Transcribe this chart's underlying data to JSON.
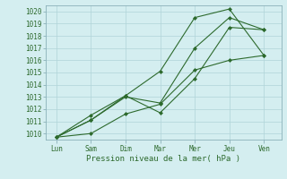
{
  "title": "",
  "xlabel": "Pression niveau de la mer( hPa )",
  "ylabel": "",
  "background_color": "#d4eef0",
  "grid_color": "#b0d4d8",
  "line_color": "#2d6a2d",
  "x_labels": [
    "Lun",
    "Sam",
    "Dim",
    "Mar",
    "Mer",
    "Jeu",
    "Ven"
  ],
  "x_ticks": [
    0,
    1,
    2,
    3,
    4,
    5,
    6
  ],
  "ylim": [
    1009.5,
    1020.5
  ],
  "yticks": [
    1010,
    1011,
    1012,
    1013,
    1014,
    1015,
    1016,
    1017,
    1018,
    1019,
    1020
  ],
  "series": [
    [
      1009.7,
      1011.1,
      1013.1,
      1015.1,
      1019.5,
      1020.2,
      1016.4
    ],
    [
      1009.7,
      1011.1,
      1013.0,
      1012.5,
      1017.0,
      1019.5,
      1018.5
    ],
    [
      1009.7,
      1011.5,
      1013.1,
      1011.7,
      1014.5,
      1018.7,
      1018.5
    ],
    [
      1009.7,
      1010.0,
      1011.6,
      1012.4,
      1015.2,
      1016.0,
      1016.4
    ]
  ],
  "figsize": [
    3.2,
    2.0
  ],
  "dpi": 100
}
